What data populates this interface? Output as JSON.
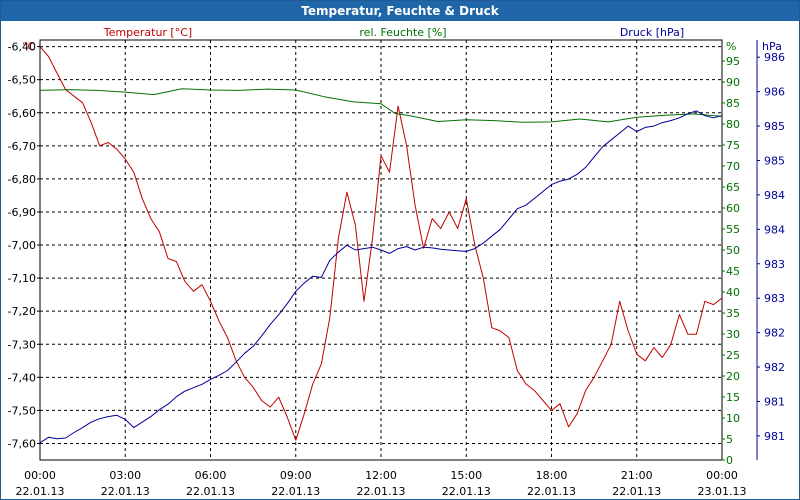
{
  "window": {
    "title": "Temperatur, Feuchte & Druck"
  },
  "colors": {
    "temperature": "#c00000",
    "humidity": "#007000",
    "pressure": "#00009a",
    "grid": "#000000",
    "titlebar": "#1e66a8"
  },
  "chart_data": {
    "type": "line",
    "title": "Temperatur, Feuchte & Druck",
    "x": {
      "ticks": [
        {
          "t": 0,
          "time": "00:00",
          "date": "22.01.13"
        },
        {
          "t": 3,
          "time": "03:00",
          "date": "22.01.13"
        },
        {
          "t": 6,
          "time": "06:00",
          "date": "22.01.13"
        },
        {
          "t": 9,
          "time": "09:00",
          "date": "22.01.13"
        },
        {
          "t": 12,
          "time": "12:00",
          "date": "22.01.13"
        },
        {
          "t": 15,
          "time": "15:00",
          "date": "22.01.13"
        },
        {
          "t": 18,
          "time": "18:00",
          "date": "22.01.13"
        },
        {
          "t": 21,
          "time": "21:00",
          "date": "22.01.13"
        },
        {
          "t": 24,
          "time": "00:00",
          "date": "23.01.13"
        }
      ],
      "range": [
        0,
        24
      ]
    },
    "axes": {
      "temperature": {
        "label": "Temperatur [°C]",
        "unit": "°C",
        "range": [
          -7.65,
          -6.38
        ],
        "ticks": [
          [
            -6.4,
            "-6,40"
          ],
          [
            -6.5,
            "-6,50"
          ],
          [
            -6.6,
            "-6,60"
          ],
          [
            -6.7,
            "-6,70"
          ],
          [
            -6.8,
            "-6,80"
          ],
          [
            -6.9,
            "-6,90"
          ],
          [
            -7.0,
            "-7,00"
          ],
          [
            -7.1,
            "-7,10"
          ],
          [
            -7.2,
            "-7,20"
          ],
          [
            -7.3,
            "-7,30"
          ],
          [
            -7.4,
            "-7,40"
          ],
          [
            -7.5,
            "-7,50"
          ],
          [
            -7.6,
            "-7,60"
          ]
        ]
      },
      "humidity": {
        "label": "rel. Feuchte [%]",
        "unit": "%",
        "range": [
          0,
          100
        ],
        "ticks": [
          [
            0,
            "0"
          ],
          [
            5,
            "5"
          ],
          [
            10,
            "10"
          ],
          [
            15,
            "15"
          ],
          [
            20,
            "20"
          ],
          [
            25,
            "25"
          ],
          [
            30,
            "30"
          ],
          [
            35,
            "35"
          ],
          [
            40,
            "40"
          ],
          [
            45,
            "45"
          ],
          [
            50,
            "50"
          ],
          [
            55,
            "55"
          ],
          [
            60,
            "60"
          ],
          [
            65,
            "65"
          ],
          [
            70,
            "70"
          ],
          [
            75,
            "75"
          ],
          [
            80,
            "80"
          ],
          [
            85,
            "85"
          ],
          [
            90,
            "90"
          ],
          [
            95,
            "95"
          ]
        ]
      },
      "pressure": {
        "label": "Druck [hPa]",
        "unit": "hPa",
        "range": [
          980.65,
          986.75
        ],
        "ticks": [
          [
            981,
            "981"
          ],
          [
            981.5,
            "981"
          ],
          [
            982,
            "982"
          ],
          [
            982.5,
            "982"
          ],
          [
            983,
            "983"
          ],
          [
            983.5,
            "983"
          ],
          [
            984,
            "984"
          ],
          [
            984.5,
            "984"
          ],
          [
            985,
            "985"
          ],
          [
            985.5,
            "985"
          ],
          [
            986,
            "986"
          ],
          [
            986.5,
            "986"
          ]
        ]
      }
    },
    "series": [
      {
        "name": "Temperatur [°C]",
        "axis": "temperature",
        "color": "#c00000",
        "points": [
          [
            0,
            -6.4
          ],
          [
            0.3,
            -6.43
          ],
          [
            0.6,
            -6.48
          ],
          [
            0.9,
            -6.53
          ],
          [
            1.2,
            -6.55
          ],
          [
            1.5,
            -6.57
          ],
          [
            1.8,
            -6.63
          ],
          [
            2.1,
            -6.7
          ],
          [
            2.4,
            -6.69
          ],
          [
            2.7,
            -6.71
          ],
          [
            3.0,
            -6.74
          ],
          [
            3.3,
            -6.78
          ],
          [
            3.6,
            -6.86
          ],
          [
            3.9,
            -6.92
          ],
          [
            4.2,
            -6.96
          ],
          [
            4.5,
            -7.04
          ],
          [
            4.8,
            -7.05
          ],
          [
            5.1,
            -7.11
          ],
          [
            5.4,
            -7.14
          ],
          [
            5.7,
            -7.12
          ],
          [
            6.0,
            -7.17
          ],
          [
            6.3,
            -7.23
          ],
          [
            6.6,
            -7.28
          ],
          [
            6.9,
            -7.35
          ],
          [
            7.2,
            -7.4
          ],
          [
            7.5,
            -7.43
          ],
          [
            7.8,
            -7.47
          ],
          [
            8.1,
            -7.49
          ],
          [
            8.4,
            -7.46
          ],
          [
            8.7,
            -7.52
          ],
          [
            9.0,
            -7.59
          ],
          [
            9.3,
            -7.51
          ],
          [
            9.6,
            -7.42
          ],
          [
            9.9,
            -7.36
          ],
          [
            10.2,
            -7.22
          ],
          [
            10.5,
            -6.98
          ],
          [
            10.8,
            -6.84
          ],
          [
            11.1,
            -6.94
          ],
          [
            11.4,
            -7.17
          ],
          [
            11.7,
            -6.98
          ],
          [
            12.0,
            -6.73
          ],
          [
            12.3,
            -6.78
          ],
          [
            12.6,
            -6.58
          ],
          [
            12.9,
            -6.7
          ],
          [
            13.2,
            -6.88
          ],
          [
            13.5,
            -7.01
          ],
          [
            13.8,
            -6.92
          ],
          [
            14.1,
            -6.95
          ],
          [
            14.4,
            -6.9
          ],
          [
            14.7,
            -6.95
          ],
          [
            15.0,
            -6.86
          ],
          [
            15.3,
            -7.0
          ],
          [
            15.6,
            -7.1
          ],
          [
            15.9,
            -7.25
          ],
          [
            16.2,
            -7.26
          ],
          [
            16.5,
            -7.28
          ],
          [
            16.8,
            -7.38
          ],
          [
            17.1,
            -7.42
          ],
          [
            17.4,
            -7.44
          ],
          [
            17.7,
            -7.47
          ],
          [
            18.0,
            -7.5
          ],
          [
            18.3,
            -7.48
          ],
          [
            18.6,
            -7.55
          ],
          [
            18.9,
            -7.51
          ],
          [
            19.2,
            -7.44
          ],
          [
            19.5,
            -7.4
          ],
          [
            19.8,
            -7.35
          ],
          [
            20.1,
            -7.3
          ],
          [
            20.4,
            -7.17
          ],
          [
            20.7,
            -7.26
          ],
          [
            21.0,
            -7.33
          ],
          [
            21.3,
            -7.35
          ],
          [
            21.6,
            -7.31
          ],
          [
            21.9,
            -7.34
          ],
          [
            22.2,
            -7.3
          ],
          [
            22.5,
            -7.21
          ],
          [
            22.8,
            -7.27
          ],
          [
            23.1,
            -7.27
          ],
          [
            23.4,
            -7.17
          ],
          [
            23.7,
            -7.18
          ],
          [
            24.0,
            -7.16
          ]
        ]
      },
      {
        "name": "rel. Feuchte [%]",
        "axis": "humidity",
        "color": "#007000",
        "points": [
          [
            0,
            88.0
          ],
          [
            1,
            88.2
          ],
          [
            2,
            88.0
          ],
          [
            3,
            87.6
          ],
          [
            4,
            87.0
          ],
          [
            5,
            88.4
          ],
          [
            6,
            88.1
          ],
          [
            7,
            88.0
          ],
          [
            8,
            88.3
          ],
          [
            9,
            88.1
          ],
          [
            10,
            86.5
          ],
          [
            11,
            85.3
          ],
          [
            12,
            84.8
          ],
          [
            12.5,
            82.5
          ],
          [
            13,
            82.0
          ],
          [
            14,
            80.6
          ],
          [
            15,
            81.0
          ],
          [
            16,
            80.8
          ],
          [
            17,
            80.4
          ],
          [
            18,
            80.5
          ],
          [
            19,
            81.2
          ],
          [
            20,
            80.5
          ],
          [
            21,
            81.6
          ],
          [
            22,
            82.1
          ],
          [
            23,
            82.4
          ],
          [
            24,
            81.8
          ]
        ]
      },
      {
        "name": "Druck [hPa]",
        "axis": "pressure",
        "color": "#00009a",
        "points": [
          [
            0,
            980.9
          ],
          [
            0.3,
            980.98
          ],
          [
            0.6,
            980.96
          ],
          [
            0.9,
            980.97
          ],
          [
            1.2,
            981.05
          ],
          [
            1.5,
            981.12
          ],
          [
            1.8,
            981.2
          ],
          [
            2.1,
            981.25
          ],
          [
            2.4,
            981.28
          ],
          [
            2.7,
            981.3
          ],
          [
            3.0,
            981.24
          ],
          [
            3.3,
            981.12
          ],
          [
            3.6,
            981.2
          ],
          [
            3.9,
            981.28
          ],
          [
            4.2,
            981.38
          ],
          [
            4.5,
            981.46
          ],
          [
            4.8,
            981.57
          ],
          [
            5.1,
            981.65
          ],
          [
            5.4,
            981.7
          ],
          [
            5.7,
            981.75
          ],
          [
            6.0,
            981.82
          ],
          [
            6.3,
            981.88
          ],
          [
            6.6,
            981.95
          ],
          [
            6.9,
            982.07
          ],
          [
            7.2,
            982.2
          ],
          [
            7.5,
            982.3
          ],
          [
            7.8,
            982.45
          ],
          [
            8.1,
            982.62
          ],
          [
            8.4,
            982.76
          ],
          [
            8.7,
            982.92
          ],
          [
            9.0,
            983.1
          ],
          [
            9.3,
            983.22
          ],
          [
            9.6,
            983.32
          ],
          [
            9.9,
            983.3
          ],
          [
            10.2,
            983.55
          ],
          [
            10.5,
            983.67
          ],
          [
            10.8,
            983.77
          ],
          [
            11.1,
            983.7
          ],
          [
            11.4,
            983.72
          ],
          [
            11.7,
            983.74
          ],
          [
            12.0,
            983.7
          ],
          [
            12.3,
            983.65
          ],
          [
            12.6,
            983.72
          ],
          [
            12.9,
            983.75
          ],
          [
            13.2,
            983.7
          ],
          [
            13.5,
            983.74
          ],
          [
            13.8,
            983.73
          ],
          [
            14.1,
            983.71
          ],
          [
            14.4,
            983.7
          ],
          [
            14.7,
            983.69
          ],
          [
            15.0,
            983.68
          ],
          [
            15.3,
            983.72
          ],
          [
            15.6,
            983.8
          ],
          [
            15.9,
            983.9
          ],
          [
            16.2,
            984.0
          ],
          [
            16.5,
            984.15
          ],
          [
            16.8,
            984.3
          ],
          [
            17.1,
            984.35
          ],
          [
            17.4,
            984.45
          ],
          [
            17.7,
            984.55
          ],
          [
            18.0,
            984.65
          ],
          [
            18.3,
            984.7
          ],
          [
            18.6,
            984.73
          ],
          [
            18.9,
            984.8
          ],
          [
            19.2,
            984.9
          ],
          [
            19.5,
            985.05
          ],
          [
            19.8,
            985.2
          ],
          [
            20.1,
            985.3
          ],
          [
            20.4,
            985.4
          ],
          [
            20.7,
            985.5
          ],
          [
            21.0,
            985.42
          ],
          [
            21.3,
            985.48
          ],
          [
            21.6,
            985.5
          ],
          [
            21.9,
            985.55
          ],
          [
            22.2,
            985.58
          ],
          [
            22.5,
            985.62
          ],
          [
            22.8,
            985.68
          ],
          [
            23.1,
            985.72
          ],
          [
            23.4,
            985.65
          ],
          [
            23.7,
            985.62
          ],
          [
            24.0,
            985.65
          ]
        ]
      }
    ]
  }
}
